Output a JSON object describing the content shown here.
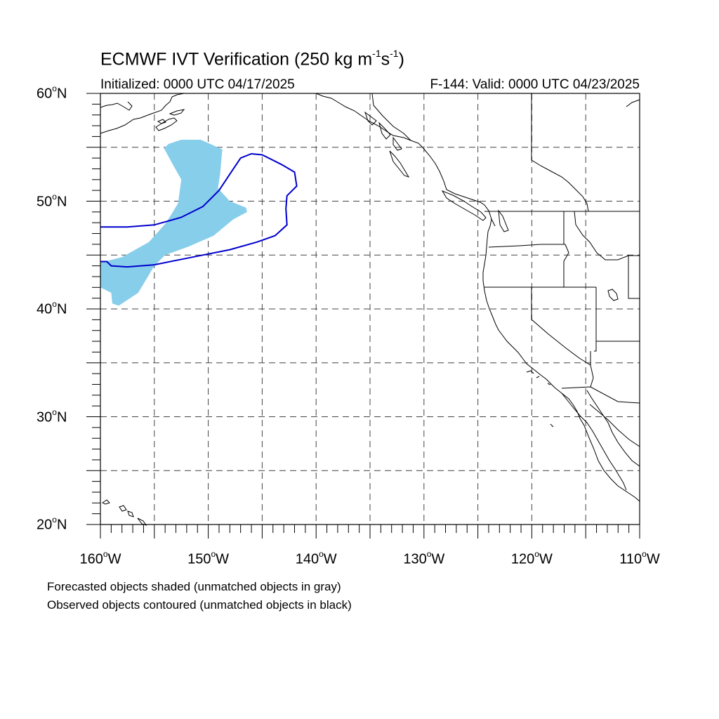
{
  "title": {
    "main": "ECMWF IVT Verification (250 kg m",
    "exp1": "-1",
    "mid": "s",
    "exp2": "-1",
    "end": ")"
  },
  "subtitle_left": "Initialized: 0000 UTC 04/17/2025",
  "subtitle_right": "F-144: Valid: 0000 UTC 04/23/2025",
  "map": {
    "projection": "cylindrical-equidistant",
    "lon_range": [
      -160,
      -110
    ],
    "lat_range": [
      20,
      60
    ],
    "grid_spacing_deg": 5,
    "grid_style": "dashed",
    "lat_labels": [
      {
        "value": 60,
        "text": "60",
        "suffix": "N"
      },
      {
        "value": 50,
        "text": "50",
        "suffix": "N"
      },
      {
        "value": 40,
        "text": "40",
        "suffix": "N"
      },
      {
        "value": 30,
        "text": "30",
        "suffix": "N"
      },
      {
        "value": 20,
        "text": "20",
        "suffix": "N"
      }
    ],
    "lon_labels": [
      {
        "value": -160,
        "text": "160",
        "suffix": "W"
      },
      {
        "value": -150,
        "text": "150",
        "suffix": "W"
      },
      {
        "value": -140,
        "text": "140",
        "suffix": "W"
      },
      {
        "value": -130,
        "text": "130",
        "suffix": "W"
      },
      {
        "value": -120,
        "text": "120",
        "suffix": "W"
      },
      {
        "value": -110,
        "text": "110",
        "suffix": "W"
      }
    ],
    "degree_symbol": "o",
    "forecast_object": {
      "type": "shaded",
      "color": "#87ceeb",
      "polygon_lonlat": [
        [
          -153.7,
          55.3
        ],
        [
          -152.5,
          55.7
        ],
        [
          -150.7,
          55.7
        ],
        [
          -149.8,
          55.3
        ],
        [
          -148.7,
          54.8
        ],
        [
          -148.9,
          52.5
        ],
        [
          -149.1,
          51.2
        ],
        [
          -148.0,
          50.0
        ],
        [
          -146.5,
          49.4
        ],
        [
          -146.4,
          49.0
        ],
        [
          -147.7,
          48.3
        ],
        [
          -149.5,
          46.8
        ],
        [
          -151.8,
          45.8
        ],
        [
          -154.0,
          45.0
        ],
        [
          -155.0,
          44.0
        ],
        [
          -156.5,
          41.5
        ],
        [
          -158.3,
          40.3
        ],
        [
          -158.9,
          40.5
        ],
        [
          -159.0,
          41.5
        ],
        [
          -160.0,
          42.0
        ],
        [
          -160.0,
          44.3
        ],
        [
          -158.0,
          44.8
        ],
        [
          -155.5,
          46.2
        ],
        [
          -153.9,
          48.0
        ],
        [
          -152.8,
          49.8
        ],
        [
          -152.5,
          52.0
        ],
        [
          -153.5,
          53.8
        ],
        [
          -154.1,
          54.9
        ]
      ]
    },
    "observed_object": {
      "type": "contour",
      "color": "#0000cd",
      "polyline_lonlat": [
        [
          -160.0,
          47.6
        ],
        [
          -157.5,
          47.6
        ],
        [
          -155.0,
          47.8
        ],
        [
          -152.5,
          48.5
        ],
        [
          -150.5,
          49.5
        ],
        [
          -149.0,
          51.0
        ],
        [
          -148.0,
          52.5
        ],
        [
          -147.0,
          54.0
        ],
        [
          -146.0,
          54.4
        ],
        [
          -145.0,
          54.3
        ],
        [
          -143.2,
          53.4
        ],
        [
          -142.0,
          52.7
        ],
        [
          -141.8,
          51.4
        ],
        [
          -142.7,
          50.5
        ],
        [
          -142.8,
          49.3
        ],
        [
          -142.7,
          47.8
        ],
        [
          -143.8,
          46.8
        ],
        [
          -145.5,
          46.2
        ],
        [
          -148.0,
          45.5
        ],
        [
          -151.5,
          44.8
        ],
        [
          -155.0,
          44.1
        ],
        [
          -157.5,
          43.9
        ],
        [
          -159.0,
          44.0
        ],
        [
          -159.4,
          44.4
        ],
        [
          -160.0,
          44.4
        ]
      ]
    }
  },
  "notes": [
    "Forecasted objects shaded (unmatched objects in gray)",
    "Observed objects contoured (unmatched objects in black)"
  ]
}
